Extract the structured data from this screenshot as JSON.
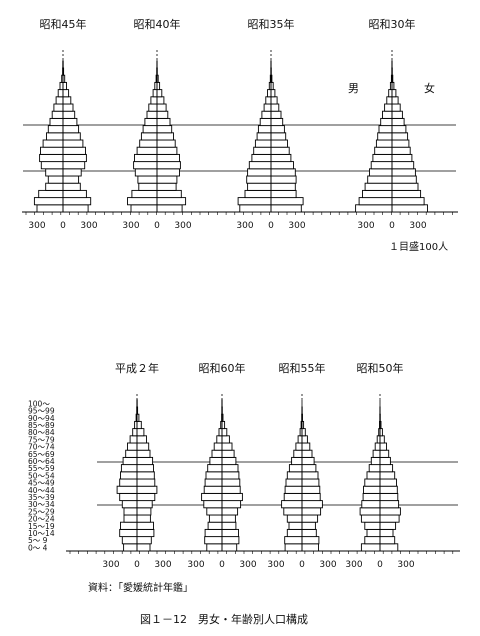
{
  "page": {
    "unit_note": "１目盛100人",
    "source": "資料：「愛媛統計年鑑」",
    "caption": "図１－12　男女・年齢別人口構成",
    "male_label": "男",
    "female_label": "女"
  },
  "age_labels": [
    "100～",
    "95～99",
    "90～94",
    "85～89",
    "80～84",
    "75～79",
    "70～74",
    "65～69",
    "60～64",
    "55～59",
    "50～54",
    "45～49",
    "40～44",
    "35～39",
    "30～34",
    "25～29",
    "20～24",
    "15～19",
    "10～14",
    "5～ 9",
    "0～ 4"
  ],
  "ticks": [
    "300",
    "0",
    "300"
  ],
  "chart_data": [
    {
      "type": "bar",
      "title": "昭和45年",
      "categories": [
        "0～4",
        "5～9",
        "10～14",
        "15～19",
        "20～24",
        "25～29",
        "30～34",
        "35～39",
        "40～44",
        "45～49",
        "50～54",
        "55～59",
        "60～64",
        "65～69",
        "70～74",
        "75～79",
        "80～84",
        "85～89",
        "90～94",
        "95～99",
        "100～"
      ],
      "series": [
        {
          "name": "男",
          "values": [
            300,
            330,
            280,
            200,
            170,
            200,
            250,
            270,
            260,
            230,
            190,
            170,
            150,
            125,
            105,
            80,
            55,
            35,
            15,
            5,
            2
          ]
        },
        {
          "name": "女",
          "values": [
            290,
            320,
            270,
            200,
            180,
            210,
            250,
            270,
            260,
            230,
            200,
            180,
            160,
            135,
            115,
            90,
            65,
            40,
            20,
            7,
            2
          ]
        }
      ],
      "xlim": [
        -400,
        400
      ]
    },
    {
      "type": "bar",
      "title": "昭和40年",
      "categories": [
        "0～4",
        "5～9",
        "10～14",
        "15～19",
        "20～24",
        "25～29",
        "30～34",
        "35～39",
        "40～44",
        "45～49",
        "50～54",
        "55～59",
        "60～64",
        "65～69",
        "70～74",
        "75～79",
        "80～84",
        "85～89",
        "90～94",
        "95～99",
        "100～"
      ],
      "series": [
        {
          "name": "男",
          "values": [
            300,
            340,
            290,
            210,
            220,
            250,
            270,
            260,
            230,
            200,
            180,
            160,
            140,
            115,
            95,
            70,
            45,
            25,
            10,
            3,
            1
          ]
        },
        {
          "name": "女",
          "values": [
            290,
            330,
            280,
            220,
            230,
            260,
            270,
            260,
            230,
            210,
            190,
            170,
            150,
            125,
            105,
            80,
            55,
            30,
            14,
            4,
            1
          ]
        }
      ],
      "xlim": [
        -400,
        400
      ]
    },
    {
      "type": "bar",
      "title": "昭和35年",
      "categories": [
        "0～4",
        "5～9",
        "10～14",
        "15～19",
        "20～24",
        "25～29",
        "30～34",
        "35～39",
        "40～44",
        "45～49",
        "50～54",
        "55～59",
        "60～64",
        "65～69",
        "70～74",
        "75～79",
        "80～84",
        "85～89",
        "90～94",
        "95～99",
        "100～"
      ],
      "series": [
        {
          "name": "男",
          "values": [
            360,
            380,
            300,
            270,
            280,
            270,
            250,
            220,
            200,
            180,
            160,
            145,
            125,
            105,
            80,
            60,
            40,
            20,
            8,
            2,
            1
          ]
        },
        {
          "name": "女",
          "values": [
            350,
            370,
            290,
            280,
            290,
            280,
            260,
            230,
            210,
            190,
            170,
            155,
            135,
            115,
            90,
            70,
            45,
            25,
            10,
            3,
            1
          ]
        }
      ],
      "xlim": [
        -400,
        400
      ]
    },
    {
      "type": "bar",
      "title": "昭和30年",
      "categories": [
        "0～4",
        "5～9",
        "10～14",
        "15～19",
        "20～24",
        "25～29",
        "30～34",
        "35～39",
        "40～44",
        "45～49",
        "50～54",
        "55～59",
        "60～64",
        "65～69",
        "70～74",
        "75～79",
        "80～84",
        "85～89",
        "90～94",
        "95～99",
        "100～"
      ],
      "series": [
        {
          "name": "男",
          "values": [
            420,
            380,
            340,
            310,
            280,
            260,
            240,
            220,
            200,
            180,
            165,
            150,
            130,
            110,
            85,
            60,
            38,
            18,
            7,
            2,
            1
          ]
        },
        {
          "name": "女",
          "values": [
            410,
            370,
            330,
            300,
            280,
            270,
            250,
            230,
            210,
            195,
            180,
            160,
            140,
            120,
            95,
            70,
            45,
            22,
            9,
            3,
            1
          ]
        }
      ],
      "xlim": [
        -400,
        400
      ]
    },
    {
      "type": "bar",
      "title": "平成２年",
      "categories": [
        "0～4",
        "5～9",
        "10～14",
        "15～19",
        "20～24",
        "25～29",
        "30～34",
        "35～39",
        "40～44",
        "45～49",
        "50～54",
        "55～59",
        "60～64",
        "65～69",
        "70～74",
        "75～79",
        "80～84",
        "85～89",
        "90～94",
        "95～99",
        "100～"
      ],
      "series": [
        {
          "name": "男",
          "values": [
            155,
            170,
            200,
            190,
            150,
            150,
            170,
            200,
            230,
            200,
            190,
            180,
            160,
            130,
            110,
            80,
            50,
            28,
            10,
            3,
            1
          ]
        },
        {
          "name": "女",
          "values": [
            150,
            165,
            195,
            190,
            155,
            160,
            175,
            205,
            230,
            205,
            200,
            190,
            180,
            150,
            135,
            110,
            80,
            50,
            22,
            7,
            2
          ]
        }
      ],
      "xlim": [
        -400,
        400
      ]
    },
    {
      "type": "bar",
      "title": "昭和60年",
      "categories": [
        "0～4",
        "5～9",
        "10～14",
        "15～19",
        "20～24",
        "25～29",
        "30～34",
        "35～39",
        "40～44",
        "45～49",
        "50～54",
        "55～59",
        "60～64",
        "65～69",
        "70～74",
        "75～79",
        "80～84",
        "85～89",
        "90～94",
        "95～99",
        "100～"
      ],
      "series": [
        {
          "name": "男",
          "values": [
            175,
            200,
            195,
            160,
            145,
            175,
            210,
            235,
            205,
            195,
            185,
            165,
            140,
            115,
            90,
            60,
            35,
            15,
            5,
            2,
            1
          ]
        },
        {
          "name": "女",
          "values": [
            170,
            195,
            190,
            160,
            155,
            180,
            215,
            235,
            210,
            205,
            195,
            185,
            160,
            140,
            115,
            85,
            55,
            30,
            12,
            4,
            1
          ]
        }
      ],
      "xlim": [
        -400,
        400
      ]
    },
    {
      "type": "bar",
      "title": "昭和55年",
      "categories": [
        "0～4",
        "5～9",
        "10～14",
        "15～19",
        "20～24",
        "25～29",
        "30～34",
        "35～39",
        "40～44",
        "45～49",
        "50～54",
        "55～59",
        "60～64",
        "65～69",
        "70～74",
        "75～79",
        "80～84",
        "85～89",
        "90～94",
        "95～99",
        "100～"
      ],
      "series": [
        {
          "name": "男",
          "values": [
            195,
            200,
            170,
            150,
            170,
            210,
            235,
            205,
            195,
            185,
            170,
            145,
            120,
            95,
            70,
            45,
            22,
            10,
            3,
            1,
            0
          ]
        },
        {
          "name": "女",
          "values": [
            190,
            195,
            165,
            155,
            180,
            215,
            235,
            210,
            205,
            195,
            185,
            160,
            140,
            115,
            90,
            62,
            38,
            18,
            6,
            2,
            0
          ]
        }
      ],
      "xlim": [
        -400,
        400
      ]
    },
    {
      "type": "bar",
      "title": "昭和50年",
      "categories": [
        "0～4",
        "5～9",
        "10～14",
        "15～19",
        "20～24",
        "25～29",
        "30～34",
        "35～39",
        "40～44",
        "45～49",
        "50～54",
        "55～59",
        "60～64",
        "65～69",
        "70～74",
        "75～79",
        "80～84",
        "85～89",
        "90～94",
        "95～99",
        "100～"
      ],
      "series": [
        {
          "name": "男",
          "values": [
            215,
            175,
            150,
            175,
            215,
            230,
            210,
            195,
            190,
            175,
            150,
            125,
            100,
            80,
            55,
            32,
            15,
            6,
            2,
            1,
            0
          ]
        },
        {
          "name": "女",
          "values": [
            205,
            170,
            150,
            180,
            220,
            235,
            215,
            205,
            200,
            190,
            170,
            145,
            120,
            100,
            75,
            50,
            28,
            12,
            4,
            1,
            0
          ]
        }
      ],
      "xlim": [
        -400,
        400
      ]
    }
  ]
}
